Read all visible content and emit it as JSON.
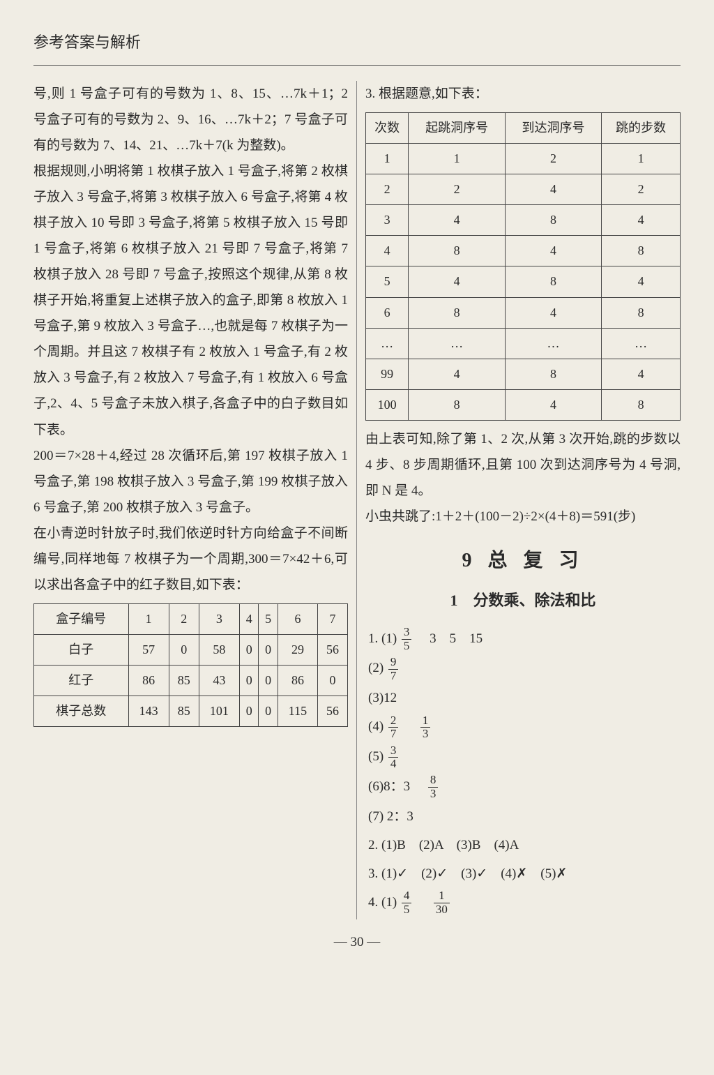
{
  "header": "参考答案与解析",
  "left": {
    "p1": "号,则 1 号盒子可有的号数为 1、8、15、…7k＋1；2 号盒子可有的号数为 2、9、16、…7k＋2；7 号盒子可有的号数为 7、14、21、…7k＋7(k 为整数)。",
    "p2": "根据规则,小明将第 1 枚棋子放入 1 号盒子,将第 2 枚棋子放入 3 号盒子,将第 3 枚棋子放入 6 号盒子,将第 4 枚棋子放入 10 号即 3 号盒子,将第 5 枚棋子放入 15 号即 1 号盒子,将第 6 枚棋子放入 21 号即 7 号盒子,将第 7 枚棋子放入 28 号即 7 号盒子,按照这个规律,从第 8 枚棋子开始,将重复上述棋子放入的盒子,即第 8 枚放入 1 号盒子,第 9 枚放入 3 号盒子…,也就是每 7 枚棋子为一个周期。并且这 7 枚棋子有 2 枚放入 1 号盒子,有 2 枚放入 3 号盒子,有 2 枚放入 7 号盒子,有 1 枚放入 6 号盒子,2、4、5 号盒子未放入棋子,各盒子中的白子数目如下表。",
    "p3": "200＝7×28＋4,经过 28 次循环后,第 197 枚棋子放入 1 号盒子,第 198 枚棋子放入 3 号盒子,第 199 枚棋子放入 6 号盒子,第 200 枚棋子放入 3 号盒子。",
    "p4": "在小青逆时针放子时,我们依逆时针方向给盒子不间断编号,同样地每 7 枚棋子为一个周期,300＝7×42＋6,可以求出各盒子中的红子数目,如下表：",
    "table1": {
      "headers": [
        "盒子编号",
        "1",
        "2",
        "3",
        "4",
        "5",
        "6",
        "7"
      ],
      "rows": [
        [
          "白子",
          "57",
          "0",
          "58",
          "0",
          "0",
          "29",
          "56"
        ],
        [
          "红子",
          "86",
          "85",
          "43",
          "0",
          "0",
          "86",
          "0"
        ],
        [
          "棋子总数",
          "143",
          "85",
          "101",
          "0",
          "0",
          "115",
          "56"
        ]
      ]
    }
  },
  "right": {
    "q3_label": "3. 根据题意,如下表：",
    "table2": {
      "headers": [
        "次数",
        "起跳洞序号",
        "到达洞序号",
        "跳的步数"
      ],
      "rows": [
        [
          "1",
          "1",
          "2",
          "1"
        ],
        [
          "2",
          "2",
          "4",
          "2"
        ],
        [
          "3",
          "4",
          "8",
          "4"
        ],
        [
          "4",
          "8",
          "4",
          "8"
        ],
        [
          "5",
          "4",
          "8",
          "4"
        ],
        [
          "6",
          "8",
          "4",
          "8"
        ],
        [
          "…",
          "…",
          "…",
          "…"
        ],
        [
          "99",
          "4",
          "8",
          "4"
        ],
        [
          "100",
          "8",
          "4",
          "8"
        ]
      ]
    },
    "p5": "由上表可知,除了第 1、2 次,从第 3 次开始,跳的步数以 4 步、8 步周期循环,且第 100 次到达洞序号为 4 号洞,即 N 是 4。",
    "p6": "小虫共跳了:1＋2＋(100－2)÷2×(4＋8)＝591(步)",
    "chapter": "9  总  复  习",
    "sub": "1　分数乘、除法和比",
    "a1_1a": "1. (1)",
    "a1_1b": "　3　5　15",
    "a1_2a": "(2)",
    "a1_3": "(3)12",
    "a1_4a": "(4)",
    "a1_5a": "(5)",
    "a1_6a": "(6)8：3　",
    "a1_7": "(7) 2：3",
    "a2": "2. (1)B　(2)A　(3)B　(4)A",
    "a3": "3. (1)✓　(2)✓　(3)✓　(4)✗　(5)✗",
    "a4a": "4. (1)",
    "frac_3_5_n": "3",
    "frac_3_5_d": "5",
    "frac_9_7_n": "9",
    "frac_9_7_d": "7",
    "frac_2_7_n": "2",
    "frac_2_7_d": "7",
    "frac_1_3_n": "1",
    "frac_1_3_d": "3",
    "frac_3_4_n": "3",
    "frac_3_4_d": "4",
    "frac_8_3_n": "8",
    "frac_8_3_d": "3",
    "frac_4_5_n": "4",
    "frac_4_5_d": "5",
    "frac_1_30_n": "1",
    "frac_1_30_d": "30"
  },
  "pagenum": "— 30 —"
}
